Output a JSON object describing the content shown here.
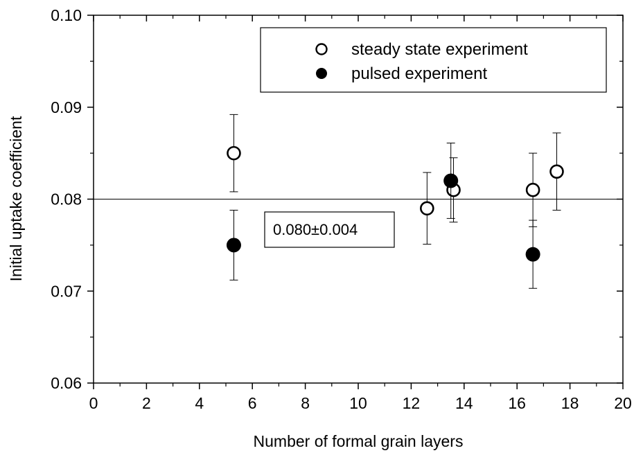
{
  "chart_data": {
    "type": "scatter",
    "xlabel": "Number of formal grain layers",
    "ylabel": "Initial uptake coefficient",
    "xlim": [
      0,
      20
    ],
    "ylim": [
      0.06,
      0.1
    ],
    "x_ticks": [
      0,
      2,
      4,
      6,
      8,
      10,
      12,
      14,
      16,
      18,
      20
    ],
    "y_ticks": [
      0.06,
      0.07,
      0.08,
      0.09,
      0.1
    ],
    "x_tick_labels": [
      "0",
      "2",
      "4",
      "6",
      "8",
      "10",
      "12",
      "14",
      "16",
      "18",
      "20"
    ],
    "y_tick_labels": [
      "0.06",
      "0.07",
      "0.08",
      "0.09",
      "0.10"
    ],
    "grid": false,
    "legend_position": "top-right",
    "series": [
      {
        "name": "steady state experiment",
        "marker": "open-circle",
        "points": [
          {
            "x": 5.3,
            "y": 0.085,
            "err": 0.0042
          },
          {
            "x": 12.6,
            "y": 0.079,
            "err": 0.0039
          },
          {
            "x": 13.6,
            "y": 0.081,
            "err": 0.0035
          },
          {
            "x": 16.6,
            "y": 0.081,
            "err": 0.004
          },
          {
            "x": 17.5,
            "y": 0.083,
            "err": 0.0042
          }
        ]
      },
      {
        "name": "pulsed experiment",
        "marker": "filled-circle",
        "points": [
          {
            "x": 5.3,
            "y": 0.075,
            "err": 0.0038
          },
          {
            "x": 13.5,
            "y": 0.082,
            "err": 0.0041
          },
          {
            "x": 16.6,
            "y": 0.074,
            "err": 0.0037
          }
        ]
      }
    ],
    "reference_line": {
      "y": 0.08
    },
    "annotation": "0.080±0.004"
  }
}
